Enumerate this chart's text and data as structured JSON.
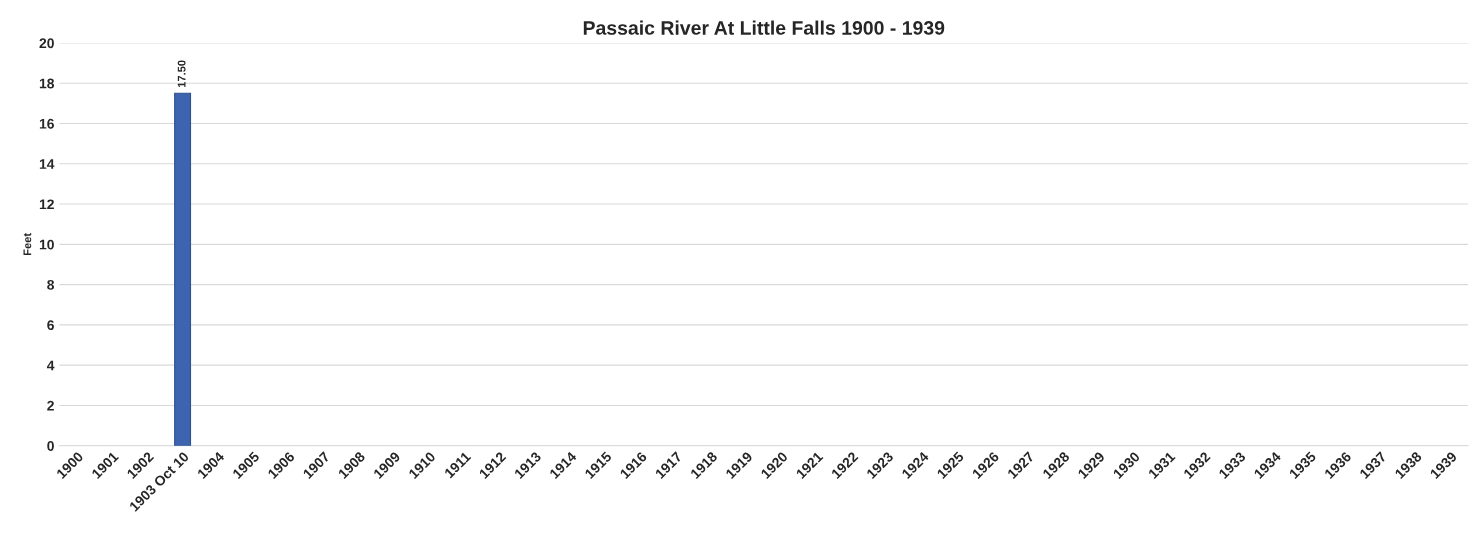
{
  "chart_data": {
    "type": "bar",
    "title": "Passaic River At Little Falls 1900 - 1939",
    "ylabel": "Feet",
    "categories": [
      "1900",
      "1901",
      "1902",
      "1903 Oct 10",
      "1904",
      "1905",
      "1906",
      "1907",
      "1908",
      "1909",
      "1910",
      "1911",
      "1912",
      "1913",
      "1914",
      "1915",
      "1916",
      "1917",
      "1918",
      "1919",
      "1920",
      "1921",
      "1922",
      "1923",
      "1924",
      "1925",
      "1926",
      "1927",
      "1928",
      "1929",
      "1930",
      "1931",
      "1932",
      "1933",
      "1934",
      "1935",
      "1936",
      "1937",
      "1938",
      "1939"
    ],
    "values": [
      null,
      null,
      null,
      17.5,
      null,
      null,
      null,
      null,
      null,
      null,
      null,
      null,
      null,
      null,
      null,
      null,
      null,
      null,
      null,
      null,
      null,
      null,
      null,
      null,
      null,
      null,
      null,
      null,
      null,
      null,
      null,
      null,
      null,
      null,
      null,
      null,
      null,
      null,
      null,
      null
    ],
    "value_labels": [
      null,
      null,
      null,
      "17.50",
      null,
      null,
      null,
      null,
      null,
      null,
      null,
      null,
      null,
      null,
      null,
      null,
      null,
      null,
      null,
      null,
      null,
      null,
      null,
      null,
      null,
      null,
      null,
      null,
      null,
      null,
      null,
      null,
      null,
      null,
      null,
      null,
      null,
      null,
      null,
      null
    ],
    "color": "#3d64ae",
    "ylim": [
      0,
      20
    ],
    "yticks": [
      0,
      2,
      4,
      6,
      8,
      10,
      12,
      14,
      16,
      18,
      20
    ],
    "grid": "y",
    "legend": false
  }
}
